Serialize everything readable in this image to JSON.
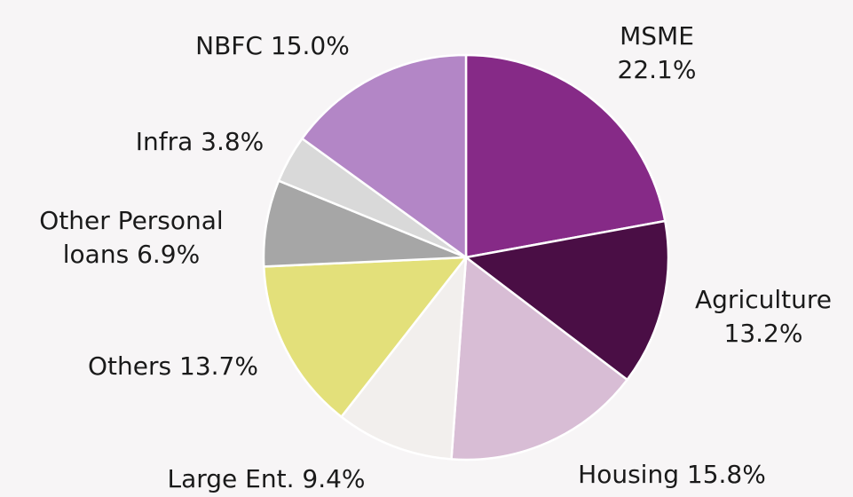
{
  "chart_data": {
    "type": "pie",
    "categories": [
      "MSME",
      "Agriculture",
      "Housing",
      "Large Ent.",
      "Others",
      "Other Personal loans",
      "Infra",
      "NBFC"
    ],
    "values": [
      22.1,
      13.2,
      15.8,
      9.4,
      13.7,
      6.9,
      3.8,
      15.0
    ],
    "value_labels": [
      "22.1%",
      "13.2%",
      "15.8%",
      "9.4%",
      "13.7%",
      "6.9%",
      "3.8%",
      "15.0%"
    ],
    "colors": [
      "#862a87",
      "#4a0e45",
      "#d8bdd5",
      "#f2efed",
      "#e3e07a",
      "#a6a6a6",
      "#d9d9d9",
      "#b386c6"
    ]
  }
}
